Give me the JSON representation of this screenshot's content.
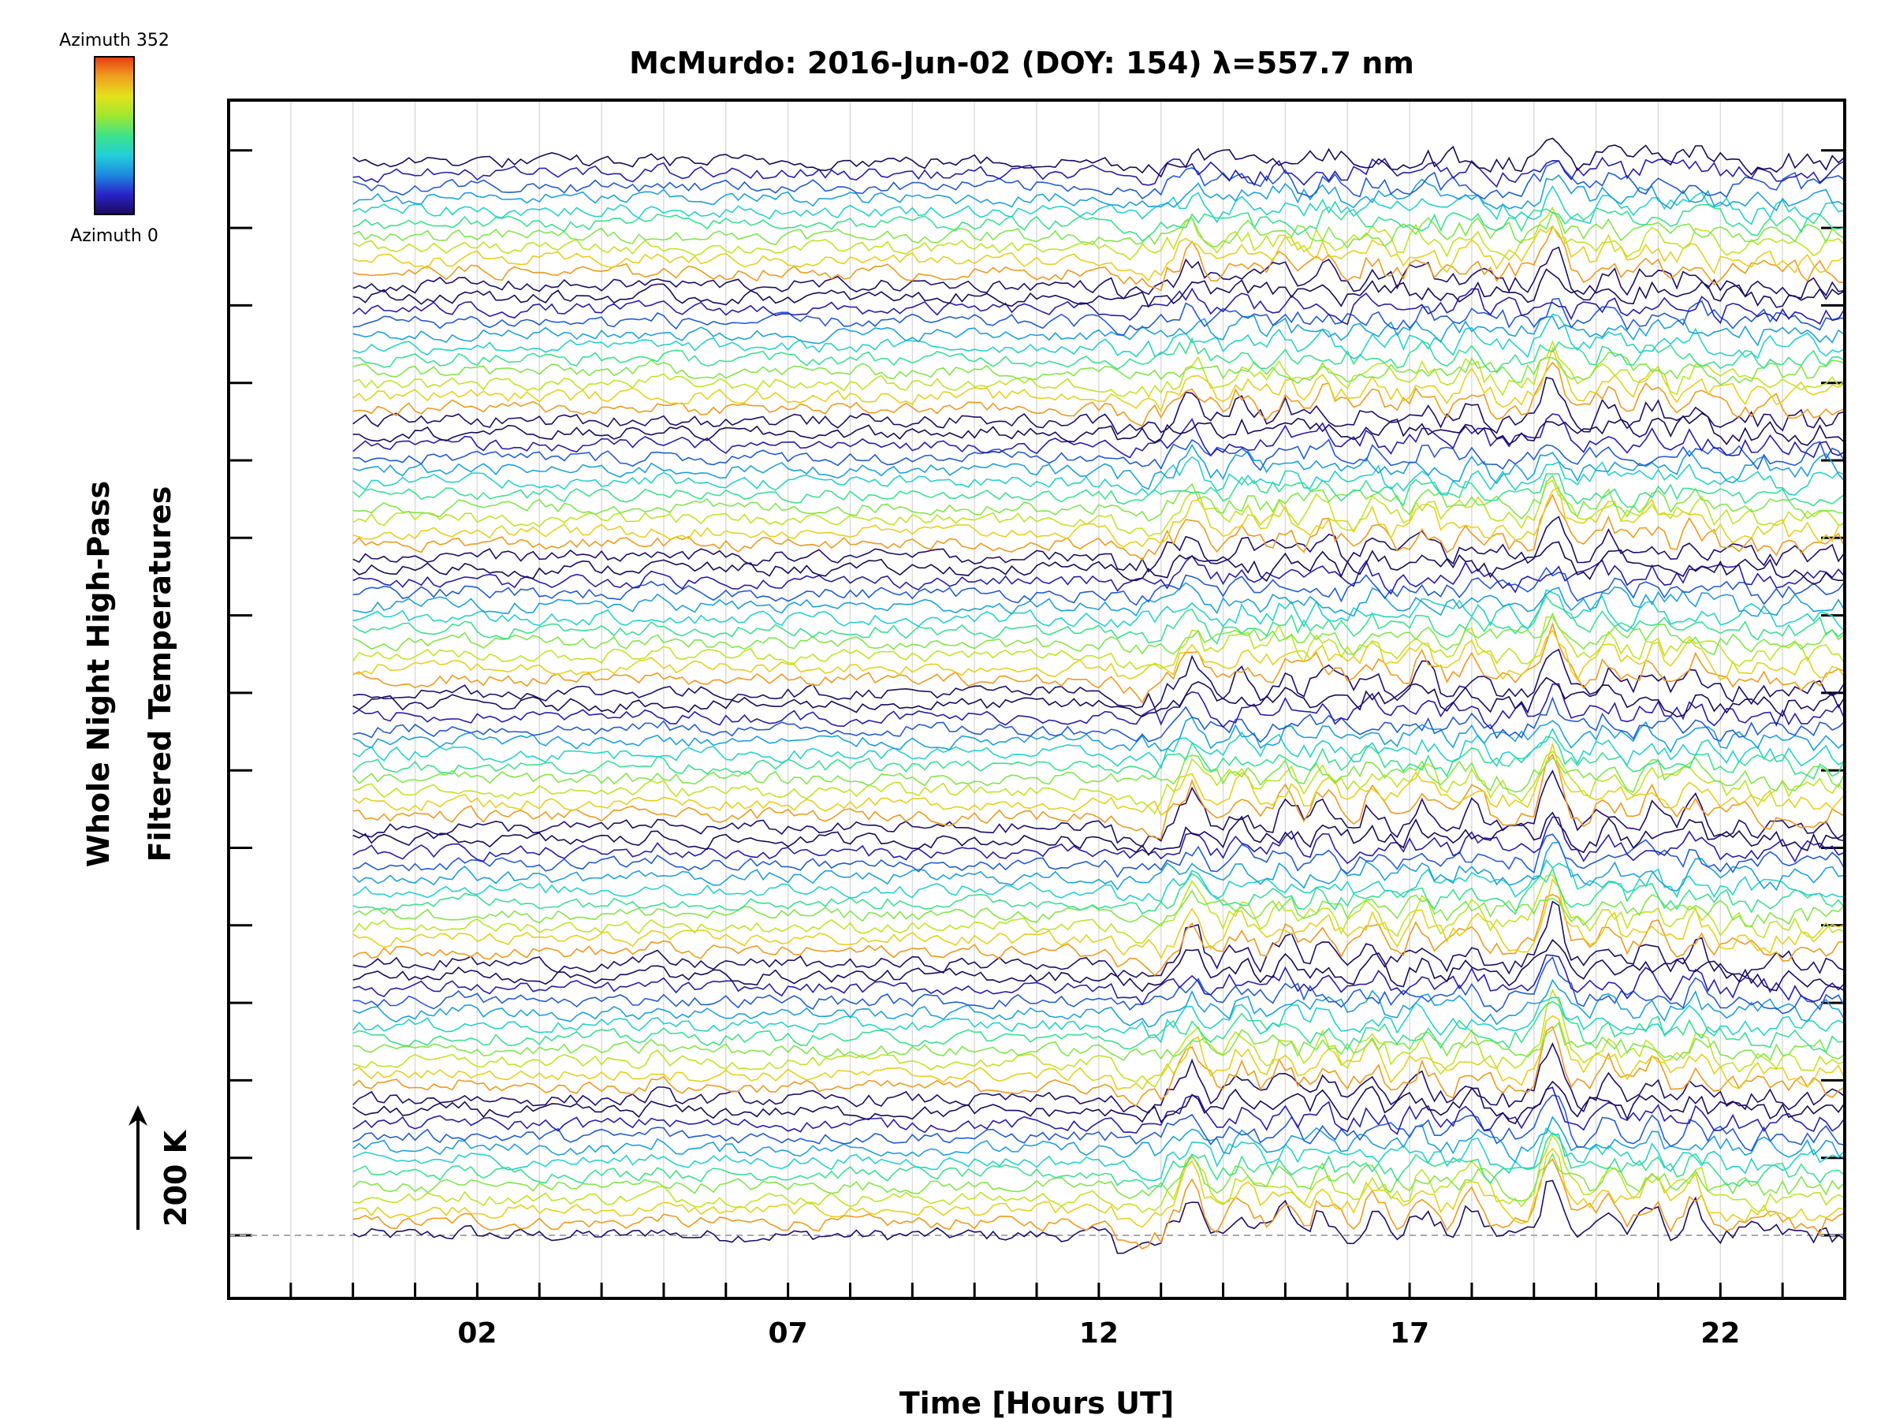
{
  "chart_data": {
    "type": "line",
    "title": "McMurdo: 2016-Jun-02 (DOY: 154) λ=557.7 nm",
    "xlabel": "Time [Hours UT]",
    "ylabel_line1": "Whole Night High-Pass",
    "ylabel_line2": "Filtered Temperatures",
    "scale_bar_label": "200 K",
    "x_tick_labels": [
      "02",
      "07",
      "12",
      "17",
      "22"
    ],
    "x_tick_values": [
      2,
      7,
      12,
      17,
      22
    ],
    "xlim": [
      -2,
      24
    ],
    "data_start_hour": 0.0,
    "data_end_hour": 24.0,
    "event_start_hour": 12.6,
    "event_peaks_hours": [
      13.5,
      14.3,
      15.0,
      15.6,
      16.4,
      17.2,
      18.0,
      19.3,
      20.2,
      20.9,
      21.6
    ],
    "series_count": 88,
    "group_count": 8,
    "series_per_group": 11,
    "colorbar": {
      "top_label": "Azimuth 352",
      "bottom_label": "Azimuth 0",
      "colormap": [
        "#1a0a5c",
        "#2a22c8",
        "#1e88e0",
        "#22d0d8",
        "#3ee28a",
        "#9ee830",
        "#e4e21c",
        "#f0a020",
        "#e63a12"
      ]
    },
    "grid": true,
    "baseline_dashed": true,
    "legend_position": "top-left"
  }
}
